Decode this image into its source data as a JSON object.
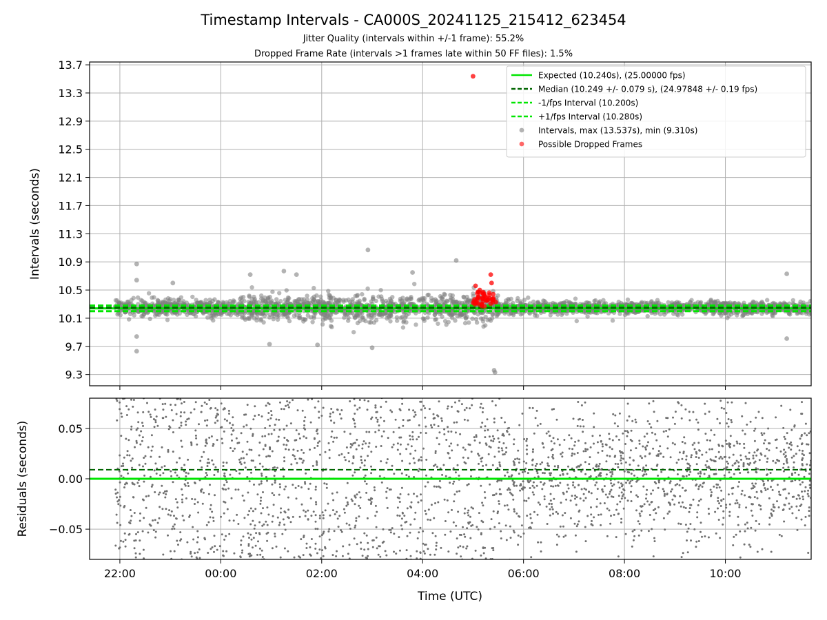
{
  "figure": {
    "title": "Timestamp Intervals - CA000S_20241125_215412_623454",
    "subtitle1": "Jitter Quality (intervals within +/-1 frame): 55.2%",
    "subtitle2": "Dropped Frame Rate (intervals >1 frames late within 50 FF files): 1.5%"
  },
  "chart_data": [
    {
      "type": "scatter",
      "name": "intervals-panel",
      "ylabel": "Intervals (seconds)",
      "xlabel": "",
      "x_range_hours": [
        -2.6,
        11.7
      ],
      "xlim": [
        "21:17",
        "11:42"
      ],
      "ylim": [
        9.14,
        13.74
      ],
      "yticks": [
        9.3,
        9.7,
        10.1,
        10.5,
        10.9,
        11.3,
        11.7,
        12.1,
        12.5,
        12.9,
        13.3,
        13.7
      ],
      "ytick_labels": [
        "9.3",
        "9.7",
        "10.1",
        "10.5",
        "10.9",
        "11.3",
        "11.7",
        "12.1",
        "12.5",
        "12.9",
        "13.3",
        "13.7"
      ],
      "xticks": [
        "22:00",
        "00:00",
        "02:00",
        "04:00",
        "06:00",
        "08:00",
        "10:00"
      ],
      "grid": true,
      "legend_position": "top-right",
      "series": [
        {
          "name": "Expected (10.240s), (25.00000 fps)",
          "kind": "hline",
          "y": 10.24,
          "color": "#00e600",
          "style": "solid"
        },
        {
          "name": "Median (10.249 +/- 0.079 s), (24.97848 +/- 0.19 fps)",
          "kind": "hline",
          "y": 10.249,
          "color": "#006400",
          "style": "dashed"
        },
        {
          "name": "-1/fps Interval (10.200s)",
          "kind": "hline",
          "y": 10.2,
          "color": "#00e600",
          "style": "dashed"
        },
        {
          "name": "+1/fps Interval (10.280s)",
          "kind": "hline",
          "y": 10.28,
          "color": "#00e600",
          "style": "dashed"
        },
        {
          "name": "Intervals, max (13.537s), min (9.310s)",
          "kind": "scatter",
          "color": "#808080",
          "points": [
            {
              "t": "22:20",
              "y": 10.87
            },
            {
              "t": "22:20",
              "y": 10.64
            },
            {
              "t": "22:20",
              "y": 9.84
            },
            {
              "t": "22:20",
              "y": 9.63
            },
            {
              "t": "23:03",
              "y": 10.6
            },
            {
              "t": "00:35",
              "y": 10.72
            },
            {
              "t": "00:58",
              "y": 9.73
            },
            {
              "t": "01:15",
              "y": 10.77
            },
            {
              "t": "01:30",
              "y": 10.72
            },
            {
              "t": "01:55",
              "y": 9.72
            },
            {
              "t": "02:55",
              "y": 11.07
            },
            {
              "t": "03:00",
              "y": 9.68
            },
            {
              "t": "03:48",
              "y": 10.75
            },
            {
              "t": "04:40",
              "y": 10.92
            },
            {
              "t": "05:25",
              "y": 9.36
            },
            {
              "t": "05:26",
              "y": 9.33
            },
            {
              "t": "11:13",
              "y": 10.73
            },
            {
              "t": "11:13",
              "y": 9.81
            }
          ]
        },
        {
          "name": "Possible Dropped Frames",
          "kind": "scatter",
          "color": "#ff0000",
          "points": [
            {
              "t": "05:00",
              "y": 13.537
            },
            {
              "t": "05:21",
              "y": 10.72
            },
            {
              "t": "05:03",
              "y": 10.56
            },
            {
              "t": "05:08",
              "y": 10.5
            },
            {
              "t": "05:12",
              "y": 10.47
            },
            {
              "t": "05:22",
              "y": 10.6
            },
            {
              "t": "05:24",
              "y": 10.44
            },
            {
              "t": "05:05",
              "y": 10.38
            },
            {
              "t": "05:16",
              "y": 10.35
            },
            {
              "t": "05:02",
              "y": 10.3
            },
            {
              "t": "05:27",
              "y": 10.33
            },
            {
              "t": "05:10",
              "y": 10.29
            }
          ]
        }
      ]
    },
    {
      "type": "scatter",
      "name": "residuals-panel",
      "ylabel": "Residuals (seconds)",
      "xlabel": "Time (UTC)",
      "xlim": [
        "21:17",
        "11:42"
      ],
      "ylim": [
        -0.08,
        0.08
      ],
      "yticks": [
        -0.05,
        0.0,
        0.05
      ],
      "ytick_labels": [
        "−0.05",
        "0.00",
        "0.05"
      ],
      "xticks": [
        "22:00",
        "00:00",
        "02:00",
        "04:00",
        "06:00",
        "08:00",
        "10:00"
      ],
      "grid": true,
      "series": [
        {
          "name": "Expected",
          "kind": "hline",
          "y": 0.0,
          "color": "#00e600",
          "style": "solid"
        },
        {
          "name": "Median",
          "kind": "hline",
          "y": 0.009,
          "color": "#006400",
          "style": "dashed"
        },
        {
          "name": "Residuals",
          "kind": "scatter",
          "color": "#808080",
          "distribution": "dense, uniform across full range before 05:30, concentrated near 0 after 05:30"
        }
      ]
    }
  ]
}
